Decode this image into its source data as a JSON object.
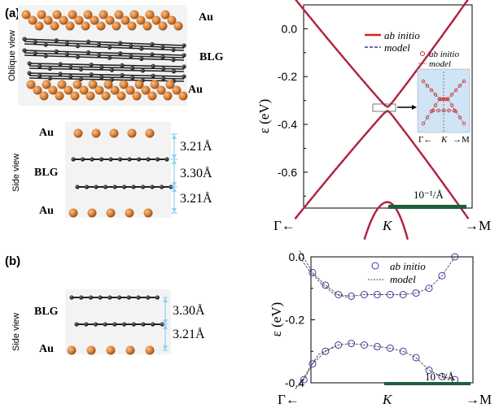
{
  "panel_a": {
    "label": "(a)",
    "oblique_view": "Oblique view",
    "side_view": "Side view",
    "au_top": "Au",
    "blg": "BLG",
    "au_bottom": "Au",
    "side_au_top": "Au",
    "side_blg": "BLG",
    "side_au_bottom": "Au",
    "dist_1": "3.21Å",
    "dist_2": "3.30Å",
    "dist_3": "3.21Å"
  },
  "panel_b": {
    "label": "(b)",
    "side_view": "Side view",
    "blg": "BLG",
    "au": "Au",
    "dist_1": "3.30Å",
    "dist_2": "3.21Å"
  },
  "colors": {
    "ab_initio_red": "#e02020",
    "model_blue": "#3a3aa0",
    "bar_green": "#1e5e3c",
    "au_orange": "#d9823b",
    "arrow_blue": "#8fd3f0"
  },
  "chart_data": [
    {
      "type": "line",
      "panel": "(a) right",
      "ylabel": "ε (eV)",
      "ylim": [
        -0.75,
        0.1
      ],
      "yticks": [
        "0.0",
        "-0.2",
        "-0.4",
        "-0.6"
      ],
      "xticks": [
        "Γ←",
        "K",
        "→M"
      ],
      "legend": [
        "ab initio",
        "model"
      ],
      "scale_bar": "10⁻¹/Å",
      "inset": {
        "legend": [
          "ab initio",
          "model"
        ],
        "xlabels": [
          "Γ←",
          "K",
          "→M"
        ]
      },
      "series": [
        {
          "name": "ab initio",
          "description": "upper Dirac bands meeting near K at ε≈-0.33 eV",
          "x": [
            -1.0,
            -0.75,
            -0.5,
            -0.25,
            -0.05,
            0,
            0.05,
            0.25,
            0.5,
            0.75,
            1.0
          ],
          "y": [
            0.1,
            -0.02,
            -0.15,
            -0.27,
            -0.33,
            -0.335,
            -0.33,
            -0.26,
            -0.13,
            0.0,
            0.1
          ]
        },
        {
          "name": "model",
          "x": [
            -1.0,
            -0.75,
            -0.5,
            -0.25,
            -0.05,
            0,
            0.05,
            0.25,
            0.5,
            0.75,
            1.0
          ],
          "y": [
            0.1,
            -0.02,
            -0.15,
            -0.27,
            -0.33,
            -0.335,
            -0.33,
            -0.26,
            -0.13,
            0.0,
            0.1
          ]
        }
      ]
    },
    {
      "type": "scatter",
      "panel": "(b) right",
      "ylabel": "ε (eV)",
      "ylim": [
        -0.4,
        0.0
      ],
      "yticks": [
        "0.0",
        "-0.2",
        "-0.4"
      ],
      "xticks": [
        "Γ←",
        "K",
        "→M"
      ],
      "legend": [
        "ab initio",
        "model"
      ],
      "scale_bar": "10⁻¹/Å",
      "series": [
        {
          "name": "ab initio",
          "x": [
            -0.85,
            -0.7,
            -0.55,
            -0.4,
            -0.25,
            -0.1,
            0.05,
            0.2,
            0.35,
            0.5,
            0.65,
            0.8
          ],
          "y": [
            -0.05,
            -0.09,
            -0.12,
            -0.125,
            -0.12,
            -0.12,
            -0.12,
            -0.12,
            -0.115,
            -0.1,
            -0.06,
            0.0
          ]
        },
        {
          "name": "ab initio lower",
          "x": [
            -0.95,
            -0.85,
            -0.7,
            -0.55,
            -0.4,
            -0.25,
            -0.1,
            0.05,
            0.2,
            0.35,
            0.5,
            0.65,
            0.8
          ],
          "y": [
            -0.39,
            -0.34,
            -0.3,
            -0.28,
            -0.275,
            -0.28,
            -0.285,
            -0.29,
            -0.3,
            -0.32,
            -0.36,
            -0.38,
            -0.39
          ]
        }
      ]
    }
  ]
}
